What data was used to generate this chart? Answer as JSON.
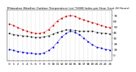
{
  "title": "Milwaukee Weather Outdoor Temperature (vs) THSW Index per Hour (Last 24 Hours)",
  "hours": [
    0,
    1,
    2,
    3,
    4,
    5,
    6,
    7,
    8,
    9,
    10,
    11,
    12,
    13,
    14,
    15,
    16,
    17,
    18,
    19,
    20,
    21,
    22,
    23
  ],
  "temp": [
    55,
    52,
    48,
    45,
    42,
    40,
    38,
    38,
    40,
    45,
    52,
    60,
    65,
    68,
    70,
    68,
    65,
    62,
    60,
    57,
    55,
    52,
    50,
    48
  ],
  "thsw": [
    10,
    8,
    6,
    5,
    4,
    3,
    2,
    2,
    4,
    8,
    14,
    22,
    32,
    38,
    42,
    40,
    36,
    30,
    24,
    18,
    14,
    12,
    10,
    9
  ],
  "dew": [
    38,
    36,
    35,
    34,
    33,
    32,
    31,
    31,
    32,
    34,
    37,
    40,
    42,
    44,
    44,
    43,
    42,
    42,
    42,
    42,
    40,
    39,
    38,
    37
  ],
  "temp_color": "#cc0000",
  "thsw_color": "#0000cc",
  "dew_color": "#000000",
  "bg_color": "#ffffff",
  "grid_color": "#888888",
  "ylim": [
    -10,
    80
  ],
  "ytick_vals": [
    0,
    10,
    20,
    30,
    40,
    50,
    60,
    70
  ],
  "xlabel_fontsize": 3.2,
  "ylabel_fontsize": 3.2,
  "title_fontsize": 3.0
}
